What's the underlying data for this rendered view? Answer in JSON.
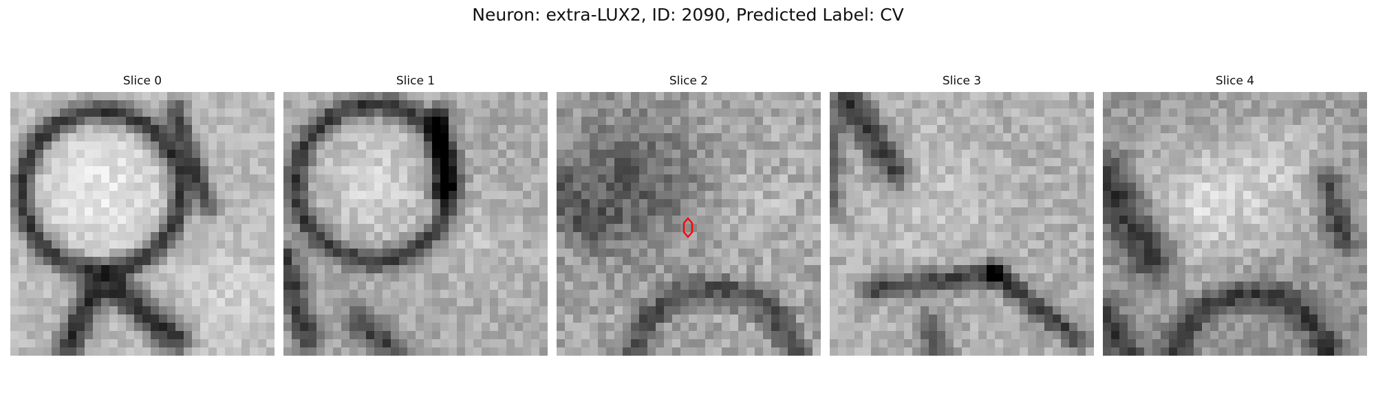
{
  "title": "Neuron: extra-LUX2, ID: 2090, Predicted Label: CV",
  "marker_color": "#ff0000",
  "panels": [
    {
      "label": "Slice 0"
    },
    {
      "label": "Slice 1"
    },
    {
      "label": "Slice 2",
      "has_marker": true
    },
    {
      "label": "Slice 3"
    },
    {
      "label": "Slice 4"
    }
  ]
}
